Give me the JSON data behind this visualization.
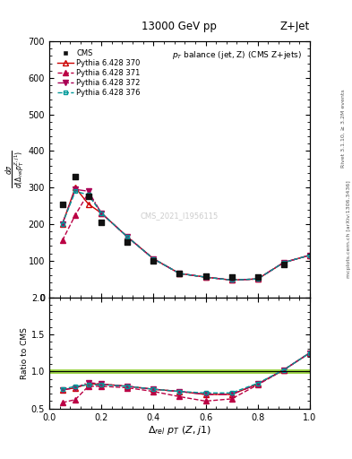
{
  "title_top": "13000 GeV pp",
  "title_right": "Z+Jet",
  "plot_title": "p_{T} balance (jet, Z) (CMS Z+jets)",
  "xlabel": "Δ_{rel} p_{T} (Z,j1)",
  "ylabel_main": "dσ/d(Δ_{rel}p_T^{Z,j1})",
  "ylabel_ratio": "Ratio to CMS",
  "watermark": "CMS_2021_I1956115",
  "rivet_text": "Rivet 3.1.10, ≥ 3.2M events",
  "arxiv_text": "mcplots.cern.ch [arXiv:1306.3436]",
  "x_cms": [
    0.05,
    0.1,
    0.15,
    0.2,
    0.3,
    0.4,
    0.5,
    0.6,
    0.7,
    0.8,
    0.9
  ],
  "y_cms": [
    255,
    330,
    275,
    205,
    150,
    100,
    65,
    58,
    55,
    55,
    90
  ],
  "x_370": [
    0.05,
    0.1,
    0.15,
    0.2,
    0.3,
    0.4,
    0.5,
    0.6,
    0.7,
    0.8,
    0.9,
    1.0
  ],
  "y_370": [
    200,
    300,
    255,
    230,
    165,
    105,
    65,
    55,
    47,
    50,
    95,
    115
  ],
  "x_371": [
    0.05,
    0.1,
    0.15,
    0.2,
    0.3,
    0.4,
    0.5,
    0.6,
    0.7,
    0.8,
    0.9,
    1.0
  ],
  "y_371": [
    155,
    225,
    285,
    230,
    165,
    105,
    65,
    55,
    47,
    50,
    95,
    115
  ],
  "x_372": [
    0.05,
    0.1,
    0.15,
    0.2,
    0.3,
    0.4,
    0.5,
    0.6,
    0.7,
    0.8,
    0.9,
    1.0
  ],
  "y_372": [
    200,
    295,
    290,
    230,
    165,
    105,
    65,
    55,
    47,
    50,
    95,
    115
  ],
  "x_376": [
    0.05,
    0.1,
    0.15,
    0.2,
    0.3,
    0.4,
    0.5,
    0.6,
    0.7,
    0.8,
    0.9,
    1.0
  ],
  "y_376": [
    200,
    290,
    280,
    230,
    165,
    105,
    65,
    55,
    47,
    50,
    95,
    115
  ],
  "ratio_x": [
    0.05,
    0.1,
    0.15,
    0.2,
    0.3,
    0.4,
    0.5,
    0.6,
    0.7,
    0.8,
    0.9,
    1.0
  ],
  "ratio_370": [
    0.75,
    0.78,
    0.83,
    0.83,
    0.8,
    0.76,
    0.73,
    0.69,
    0.69,
    0.83,
    1.02,
    1.25
  ],
  "ratio_371": [
    0.58,
    0.62,
    0.8,
    0.8,
    0.78,
    0.73,
    0.66,
    0.6,
    0.63,
    0.82,
    1.02,
    1.25
  ],
  "ratio_372": [
    0.75,
    0.78,
    0.85,
    0.83,
    0.8,
    0.76,
    0.73,
    0.69,
    0.69,
    0.83,
    1.02,
    1.25
  ],
  "ratio_376": [
    0.76,
    0.8,
    0.82,
    0.82,
    0.8,
    0.76,
    0.73,
    0.71,
    0.71,
    0.84,
    1.02,
    1.25
  ],
  "color_370": "#cc0000",
  "color_371": "#bb0044",
  "color_372": "#aa0055",
  "color_376": "#009999",
  "color_cms": "#111111",
  "ylim_main": [
    0,
    700
  ],
  "ylim_ratio": [
    0.5,
    2.0
  ],
  "xlim": [
    0.0,
    1.0
  ],
  "yticks_main": [
    0,
    100,
    200,
    300,
    400,
    500,
    600,
    700
  ],
  "yticks_ratio": [
    0.5,
    1.0,
    1.5,
    2.0
  ]
}
